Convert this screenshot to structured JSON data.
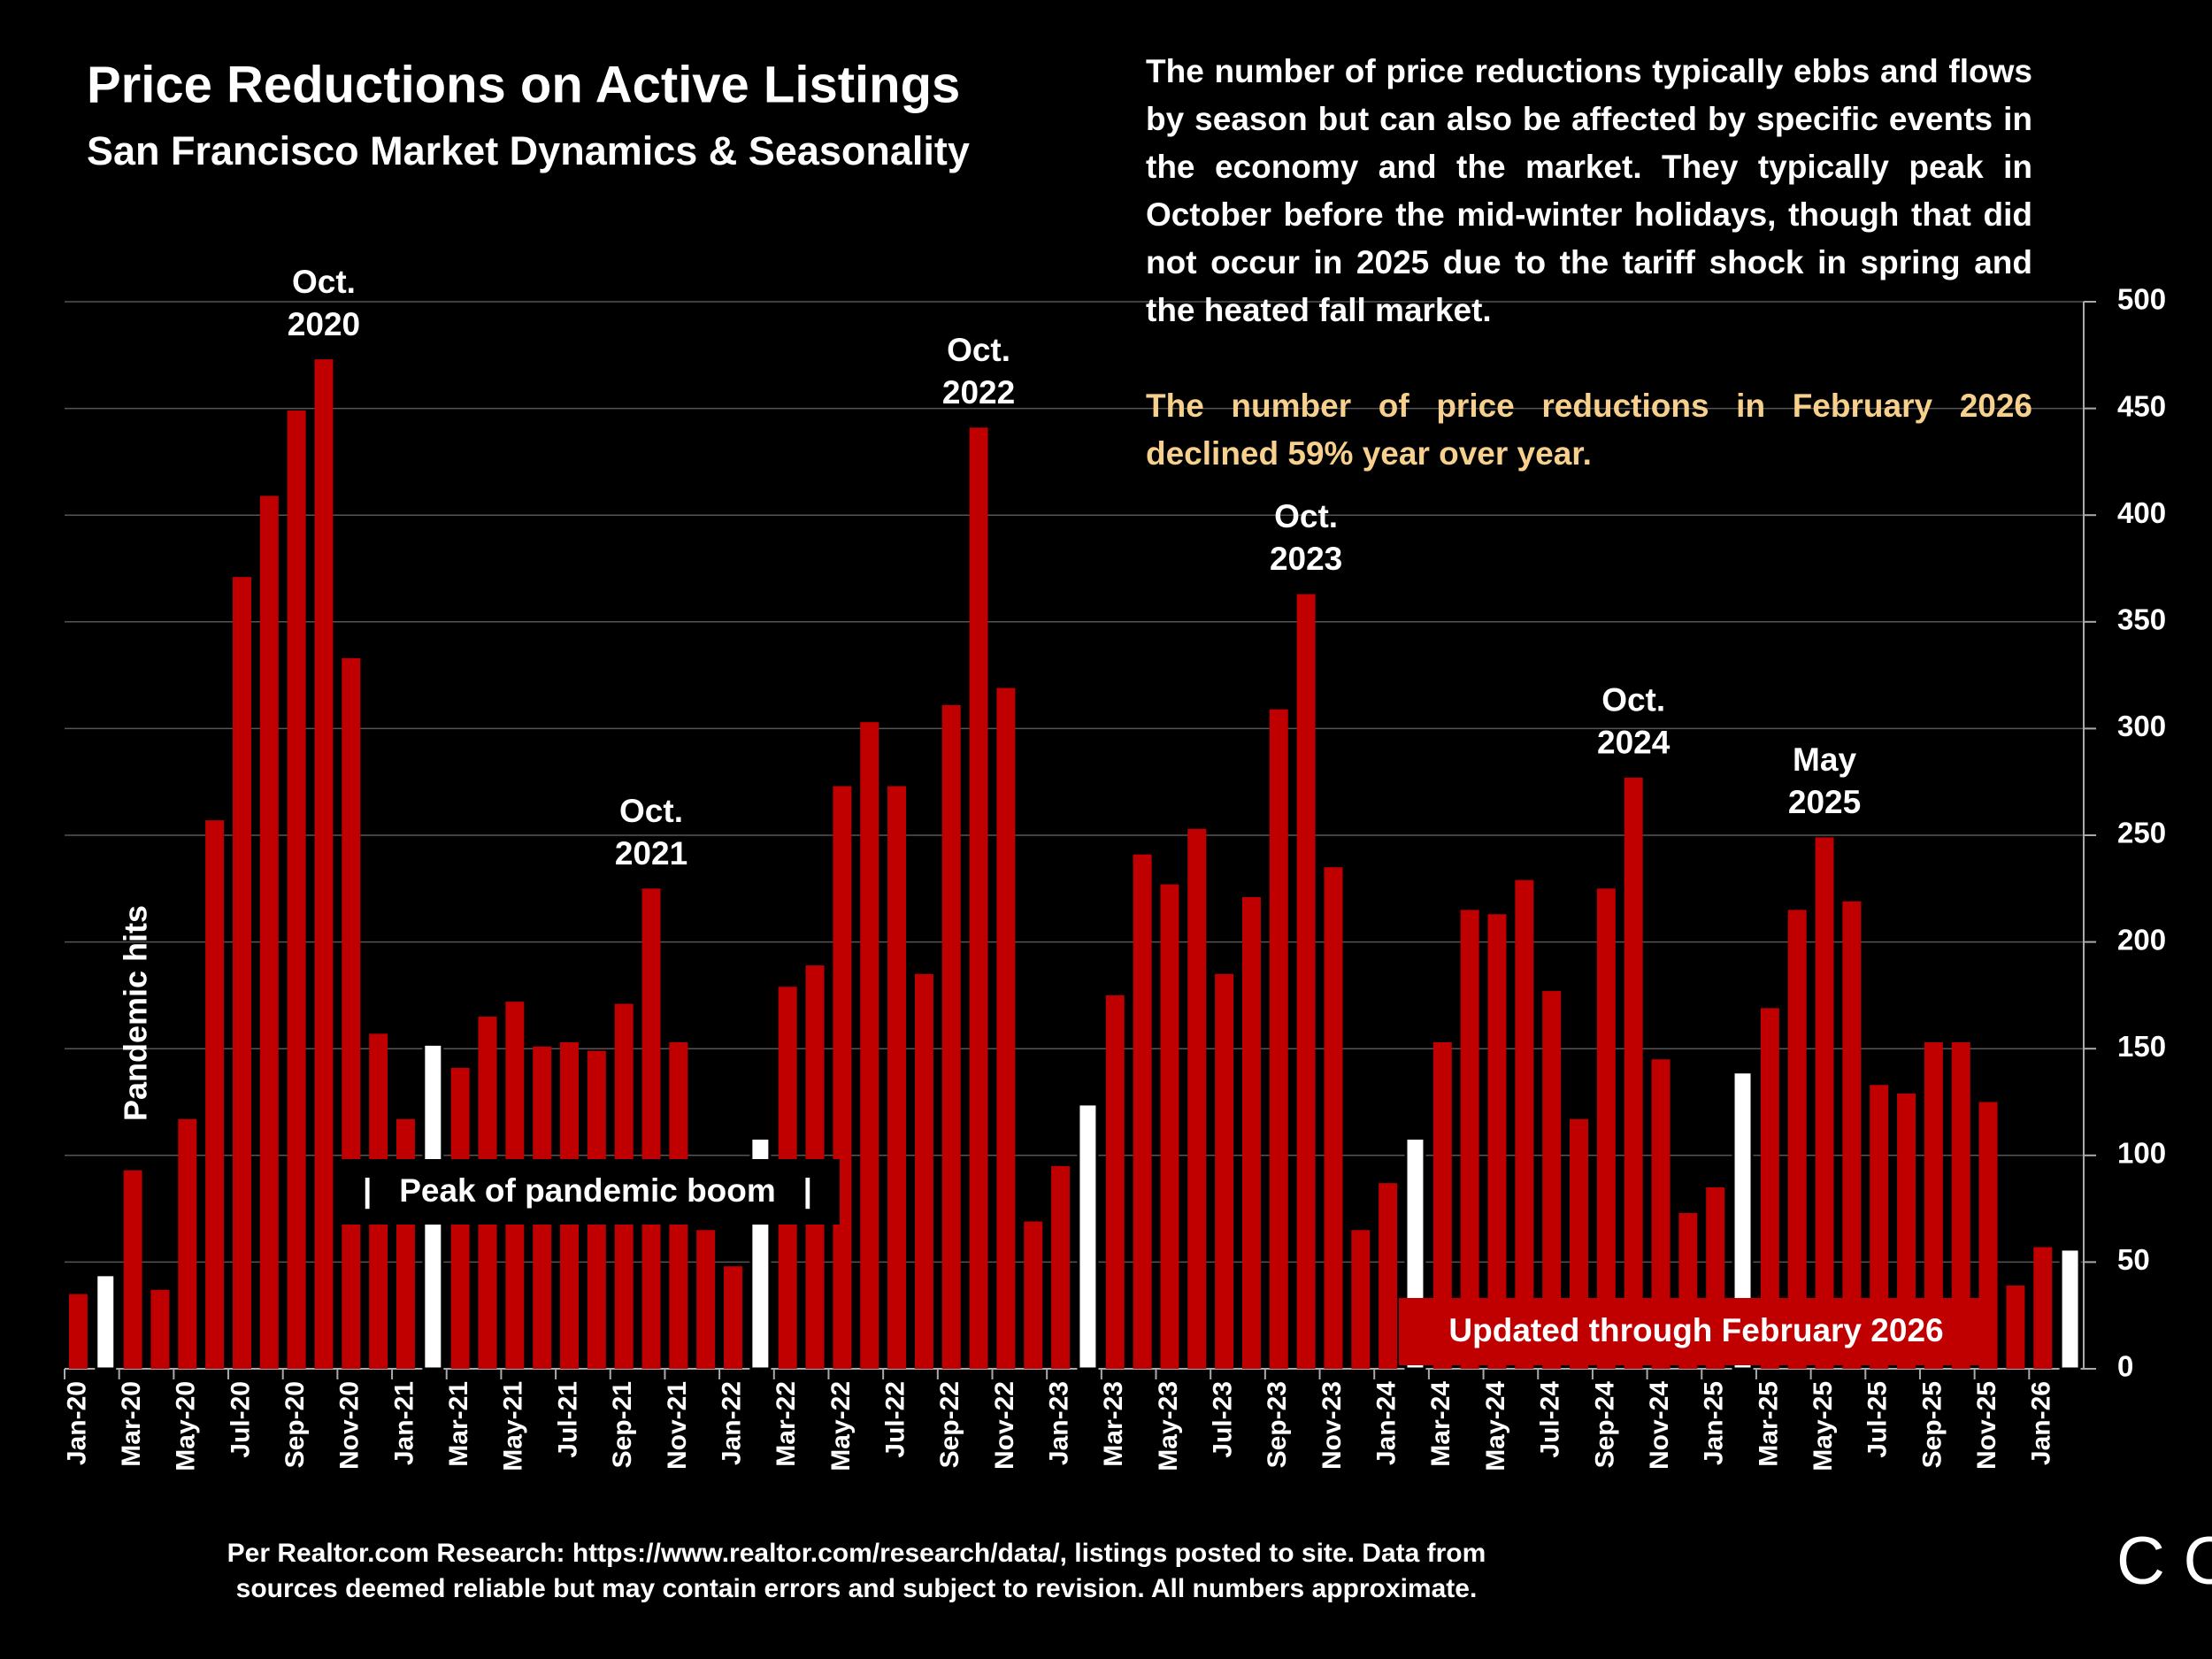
{
  "chart_data": {
    "type": "bar",
    "title": "Price Reductions on Active Listings",
    "subtitle": "San Francisco Market Dynamics & Seasonality",
    "description": "The number of price reductions typically ebbs and flows by season but can also be affected by specific events in the economy and the market. They typically peak in October before the mid-winter holidays, though that did not occur in 2025 due to the tariff shock in spring and the heated fall market.",
    "highlight_text": "The number of price reductions in February 2026 declined 59% year over year.",
    "categories": [
      "Jan-20",
      null,
      "Mar-20",
      null,
      "May-20",
      null,
      "Jul-20",
      null,
      "Sep-20",
      null,
      "Nov-20",
      null,
      "Jan-21",
      null,
      "Mar-21",
      null,
      "May-21",
      null,
      "Jul-21",
      null,
      "Sep-21",
      null,
      "Nov-21",
      null,
      "Jan-22",
      null,
      "Mar-22",
      null,
      "May-22",
      null,
      "Jul-22",
      null,
      "Sep-22",
      null,
      "Nov-22",
      null,
      "Jan-23",
      null,
      "Mar-23",
      null,
      "May-23",
      null,
      "Jul-23",
      null,
      "Sep-23",
      null,
      "Nov-23",
      null,
      "Jan-24",
      null,
      "Mar-24",
      null,
      "May-24",
      null,
      "Jul-24",
      null,
      "Sep-24",
      null,
      "Nov-24",
      null,
      "Jan-25",
      null,
      "Mar-25",
      null,
      "May-25",
      null,
      "Jul-25",
      null,
      "Sep-25",
      null,
      "Nov-25",
      null,
      "Jan-26",
      null
    ],
    "values": [
      35,
      44,
      93,
      37,
      117,
      257,
      371,
      409,
      449,
      473,
      333,
      157,
      117,
      152,
      141,
      165,
      172,
      151,
      153,
      149,
      171,
      225,
      153,
      65,
      48,
      108,
      179,
      189,
      273,
      303,
      273,
      185,
      311,
      441,
      319,
      69,
      95,
      124,
      175,
      241,
      227,
      253,
      185,
      221,
      309,
      363,
      235,
      65,
      87,
      108,
      153,
      215,
      213,
      229,
      177,
      117,
      225,
      277,
      145,
      73,
      85,
      139,
      169,
      215,
      249,
      219,
      133,
      129,
      153,
      153,
      125,
      39,
      57,
      56
    ],
    "color": "#c00000",
    "highlight_color": "#ffffff",
    "highlight_months": "February",
    "ylim": [
      0,
      500
    ],
    "yticks": [
      0,
      50,
      100,
      150,
      200,
      250,
      300,
      350,
      400,
      450,
      500
    ],
    "grid": true,
    "annotations": [
      {
        "lines": [
          "Oct.",
          "2020"
        ]
      },
      {
        "lines": [
          "Oct.",
          "2021"
        ]
      },
      {
        "lines": [
          "Oct.",
          "2022"
        ]
      },
      {
        "lines": [
          "Oct.",
          "2023"
        ]
      },
      {
        "lines": [
          "Oct.",
          "2024"
        ]
      },
      {
        "lines": [
          "May",
          "2025"
        ]
      }
    ],
    "pandemic_label": "Pandemic hits",
    "boom_label": "|   Peak of pandemic boom   |",
    "updated_label": "Updated through February 2026",
    "footnote": [
      "Per Realtor.com Research:  https://www.realtor.com/research/data/, listings posted to site. Data from",
      "sources deemed reliable but may contain errors and subject to revision. All numbers approximate."
    ],
    "logo": "COMPASS"
  }
}
